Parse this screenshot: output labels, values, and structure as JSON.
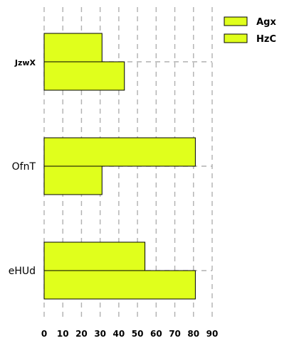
{
  "chart_data": {
    "type": "bar",
    "orientation": "horizontal",
    "categories": [
      "JzwX",
      "OfnT",
      "eHUd"
    ],
    "category_bold": [
      true,
      false,
      false
    ],
    "series": [
      {
        "name": "Agx",
        "values": [
          31,
          81,
          54
        ]
      },
      {
        "name": "HzC",
        "values": [
          43,
          31,
          81
        ]
      }
    ],
    "xlim": [
      0,
      90
    ],
    "xticks": [
      0,
      10,
      20,
      30,
      40,
      50,
      60,
      70,
      80,
      90
    ],
    "grid": {
      "x": true,
      "y": true,
      "style": "dashed"
    },
    "legend": {
      "position": "top-right"
    },
    "colors": {
      "bar_fill": "#e0ff1c",
      "bar_stroke": "#000000",
      "grid": "#b0b0b0"
    }
  }
}
